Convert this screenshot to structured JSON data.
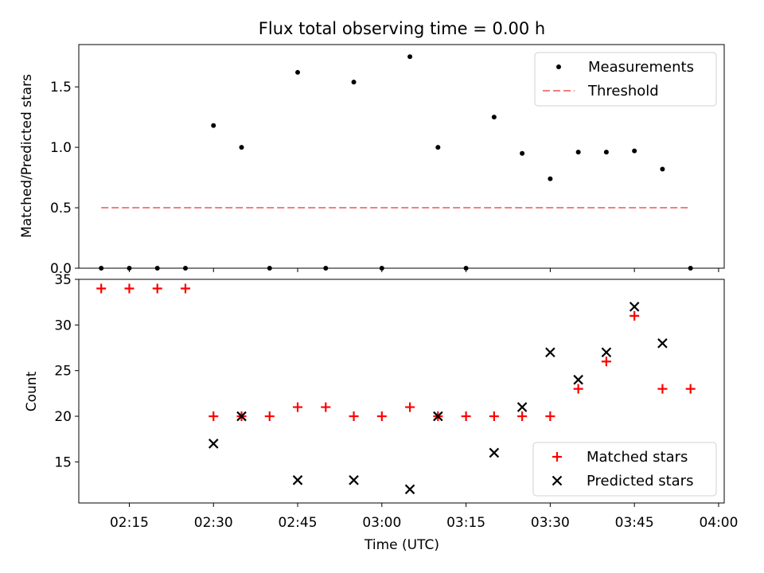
{
  "title": "Flux total observing time = 0.00 h",
  "x_axis": {
    "label": "Time (UTC)",
    "range": [
      "02:06",
      "04:01"
    ],
    "tick_labels": [
      "02:15",
      "02:30",
      "02:45",
      "03:00",
      "03:15",
      "03:30",
      "03:45",
      "04:00"
    ]
  },
  "chart_data": [
    {
      "type": "scatter",
      "panel": "top",
      "ylabel": "Matched/Predicted stars",
      "ylim": [
        0,
        1.85
      ],
      "y_ticks": [
        0.0,
        0.5,
        1.0,
        1.5
      ],
      "y_tick_labels": [
        "0.0",
        "0.5",
        "1.0",
        "1.5"
      ],
      "legend_position": "top-right",
      "series": [
        {
          "name": "Measurements",
          "kind": "scatter",
          "color": "#000000",
          "marker": "dot",
          "x": [
            "02:10",
            "02:15",
            "02:20",
            "02:25",
            "02:30",
            "02:35",
            "02:40",
            "02:45",
            "02:50",
            "02:55",
            "03:00",
            "03:05",
            "03:10",
            "03:15",
            "03:20",
            "03:25",
            "03:30",
            "03:35",
            "03:40",
            "03:45",
            "03:50",
            "03:55"
          ],
          "y": [
            0,
            0,
            0,
            0,
            1.18,
            1.0,
            0,
            1.62,
            0,
            1.54,
            0,
            1.75,
            1.0,
            0,
            1.25,
            0.95,
            0.74,
            0.96,
            0.96,
            0.97,
            0.82,
            0
          ]
        },
        {
          "name": "Threshold",
          "kind": "line",
          "color": "#f08080",
          "dash": "dashed",
          "x": [
            "02:10",
            "03:55"
          ],
          "y": [
            0.5,
            0.5
          ]
        }
      ]
    },
    {
      "type": "scatter",
      "panel": "bottom",
      "ylabel": "Count",
      "ylim": [
        10.5,
        35
      ],
      "y_ticks": [
        15,
        20,
        25,
        30,
        35
      ],
      "y_tick_labels": [
        "15",
        "20",
        "25",
        "30",
        "35"
      ],
      "legend_position": "bottom-right",
      "series": [
        {
          "name": "Matched stars",
          "kind": "scatter",
          "color": "#ff0000",
          "marker": "plus",
          "x": [
            "02:10",
            "02:15",
            "02:20",
            "02:25",
            "02:30",
            "02:35",
            "02:40",
            "02:45",
            "02:50",
            "02:55",
            "03:00",
            "03:05",
            "03:10",
            "03:15",
            "03:20",
            "03:25",
            "03:30",
            "03:35",
            "03:40",
            "03:45",
            "03:50",
            "03:55"
          ],
          "y": [
            34,
            34,
            34,
            34,
            20,
            20,
            20,
            21,
            21,
            20,
            20,
            21,
            20,
            20,
            20,
            20,
            20,
            23,
            26,
            31,
            23,
            23
          ]
        },
        {
          "name": "Predicted stars",
          "kind": "scatter",
          "color": "#000000",
          "marker": "x",
          "x": [
            "02:30",
            "02:35",
            "02:45",
            "02:55",
            "03:05",
            "03:10",
            "03:20",
            "03:25",
            "03:30",
            "03:35",
            "03:40",
            "03:45",
            "03:50"
          ],
          "y": [
            17,
            20,
            13,
            13,
            12,
            20,
            16,
            21,
            27,
            24,
            27,
            32,
            28
          ]
        }
      ]
    }
  ]
}
